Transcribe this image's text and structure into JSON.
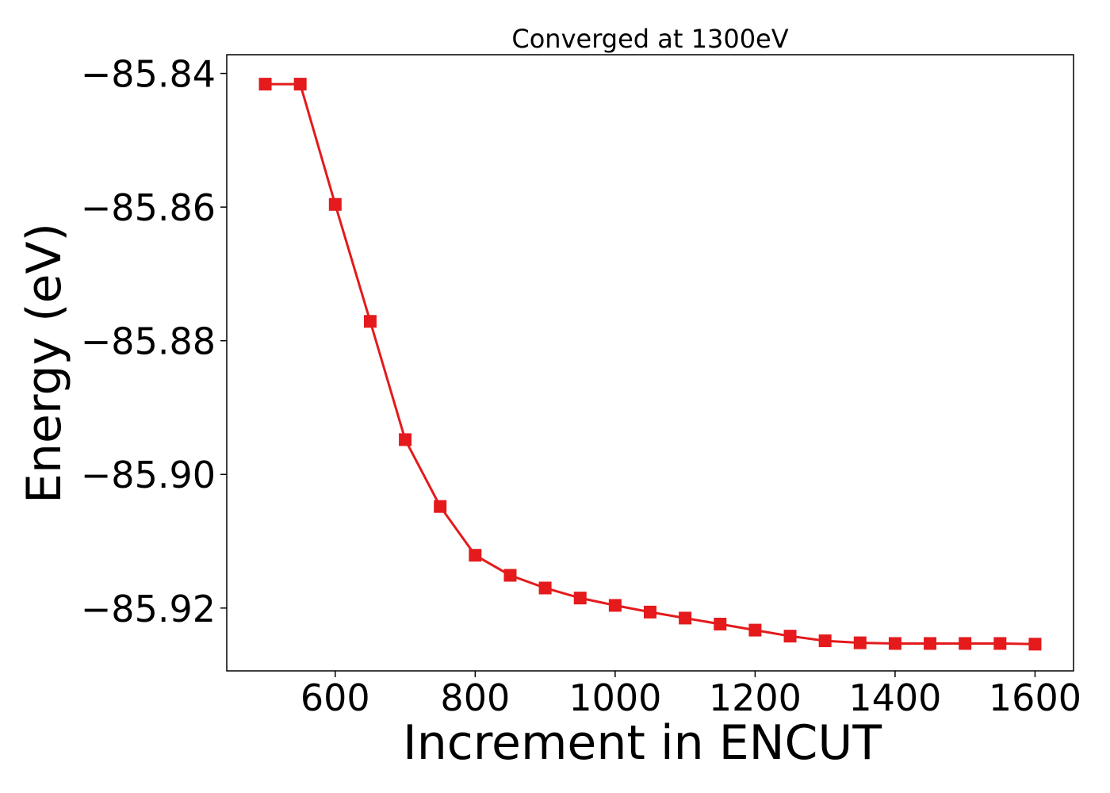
{
  "chart_data": {
    "type": "line",
    "title": "Converged at 1300eV",
    "xlabel": "Increment in ENCUT",
    "ylabel": "Energy (eV)",
    "xlim": [
      445,
      1655
    ],
    "ylim": [
      -85.9294,
      -85.8372
    ],
    "x_ticks": [
      600,
      800,
      1000,
      1200,
      1400,
      1600
    ],
    "x_tick_labels": [
      "600",
      "800",
      "1000",
      "1200",
      "1400",
      "1600"
    ],
    "y_ticks": [
      -85.84,
      -85.86,
      -85.88,
      -85.9,
      -85.92
    ],
    "y_tick_labels": [
      "−85.84",
      "−85.86",
      "−85.88",
      "−85.90",
      "−85.92"
    ],
    "grid": false,
    "legend": "none",
    "series": [
      {
        "color": "#e41a1c",
        "marker": "square",
        "x": [
          500,
          550,
          600,
          650,
          700,
          750,
          800,
          850,
          900,
          950,
          1000,
          1050,
          1100,
          1150,
          1200,
          1250,
          1300,
          1350,
          1400,
          1450,
          1500,
          1550,
          1600
        ],
        "y": [
          -85.8416,
          -85.8416,
          -85.8596,
          -85.8771,
          -85.8948,
          -85.9048,
          -85.9121,
          -85.9151,
          -85.917,
          -85.9185,
          -85.9196,
          -85.9206,
          -85.9215,
          -85.9224,
          -85.9233,
          -85.9242,
          -85.9249,
          -85.9252,
          -85.9253,
          -85.9253,
          -85.9253,
          -85.9253,
          -85.9254
        ]
      }
    ]
  }
}
